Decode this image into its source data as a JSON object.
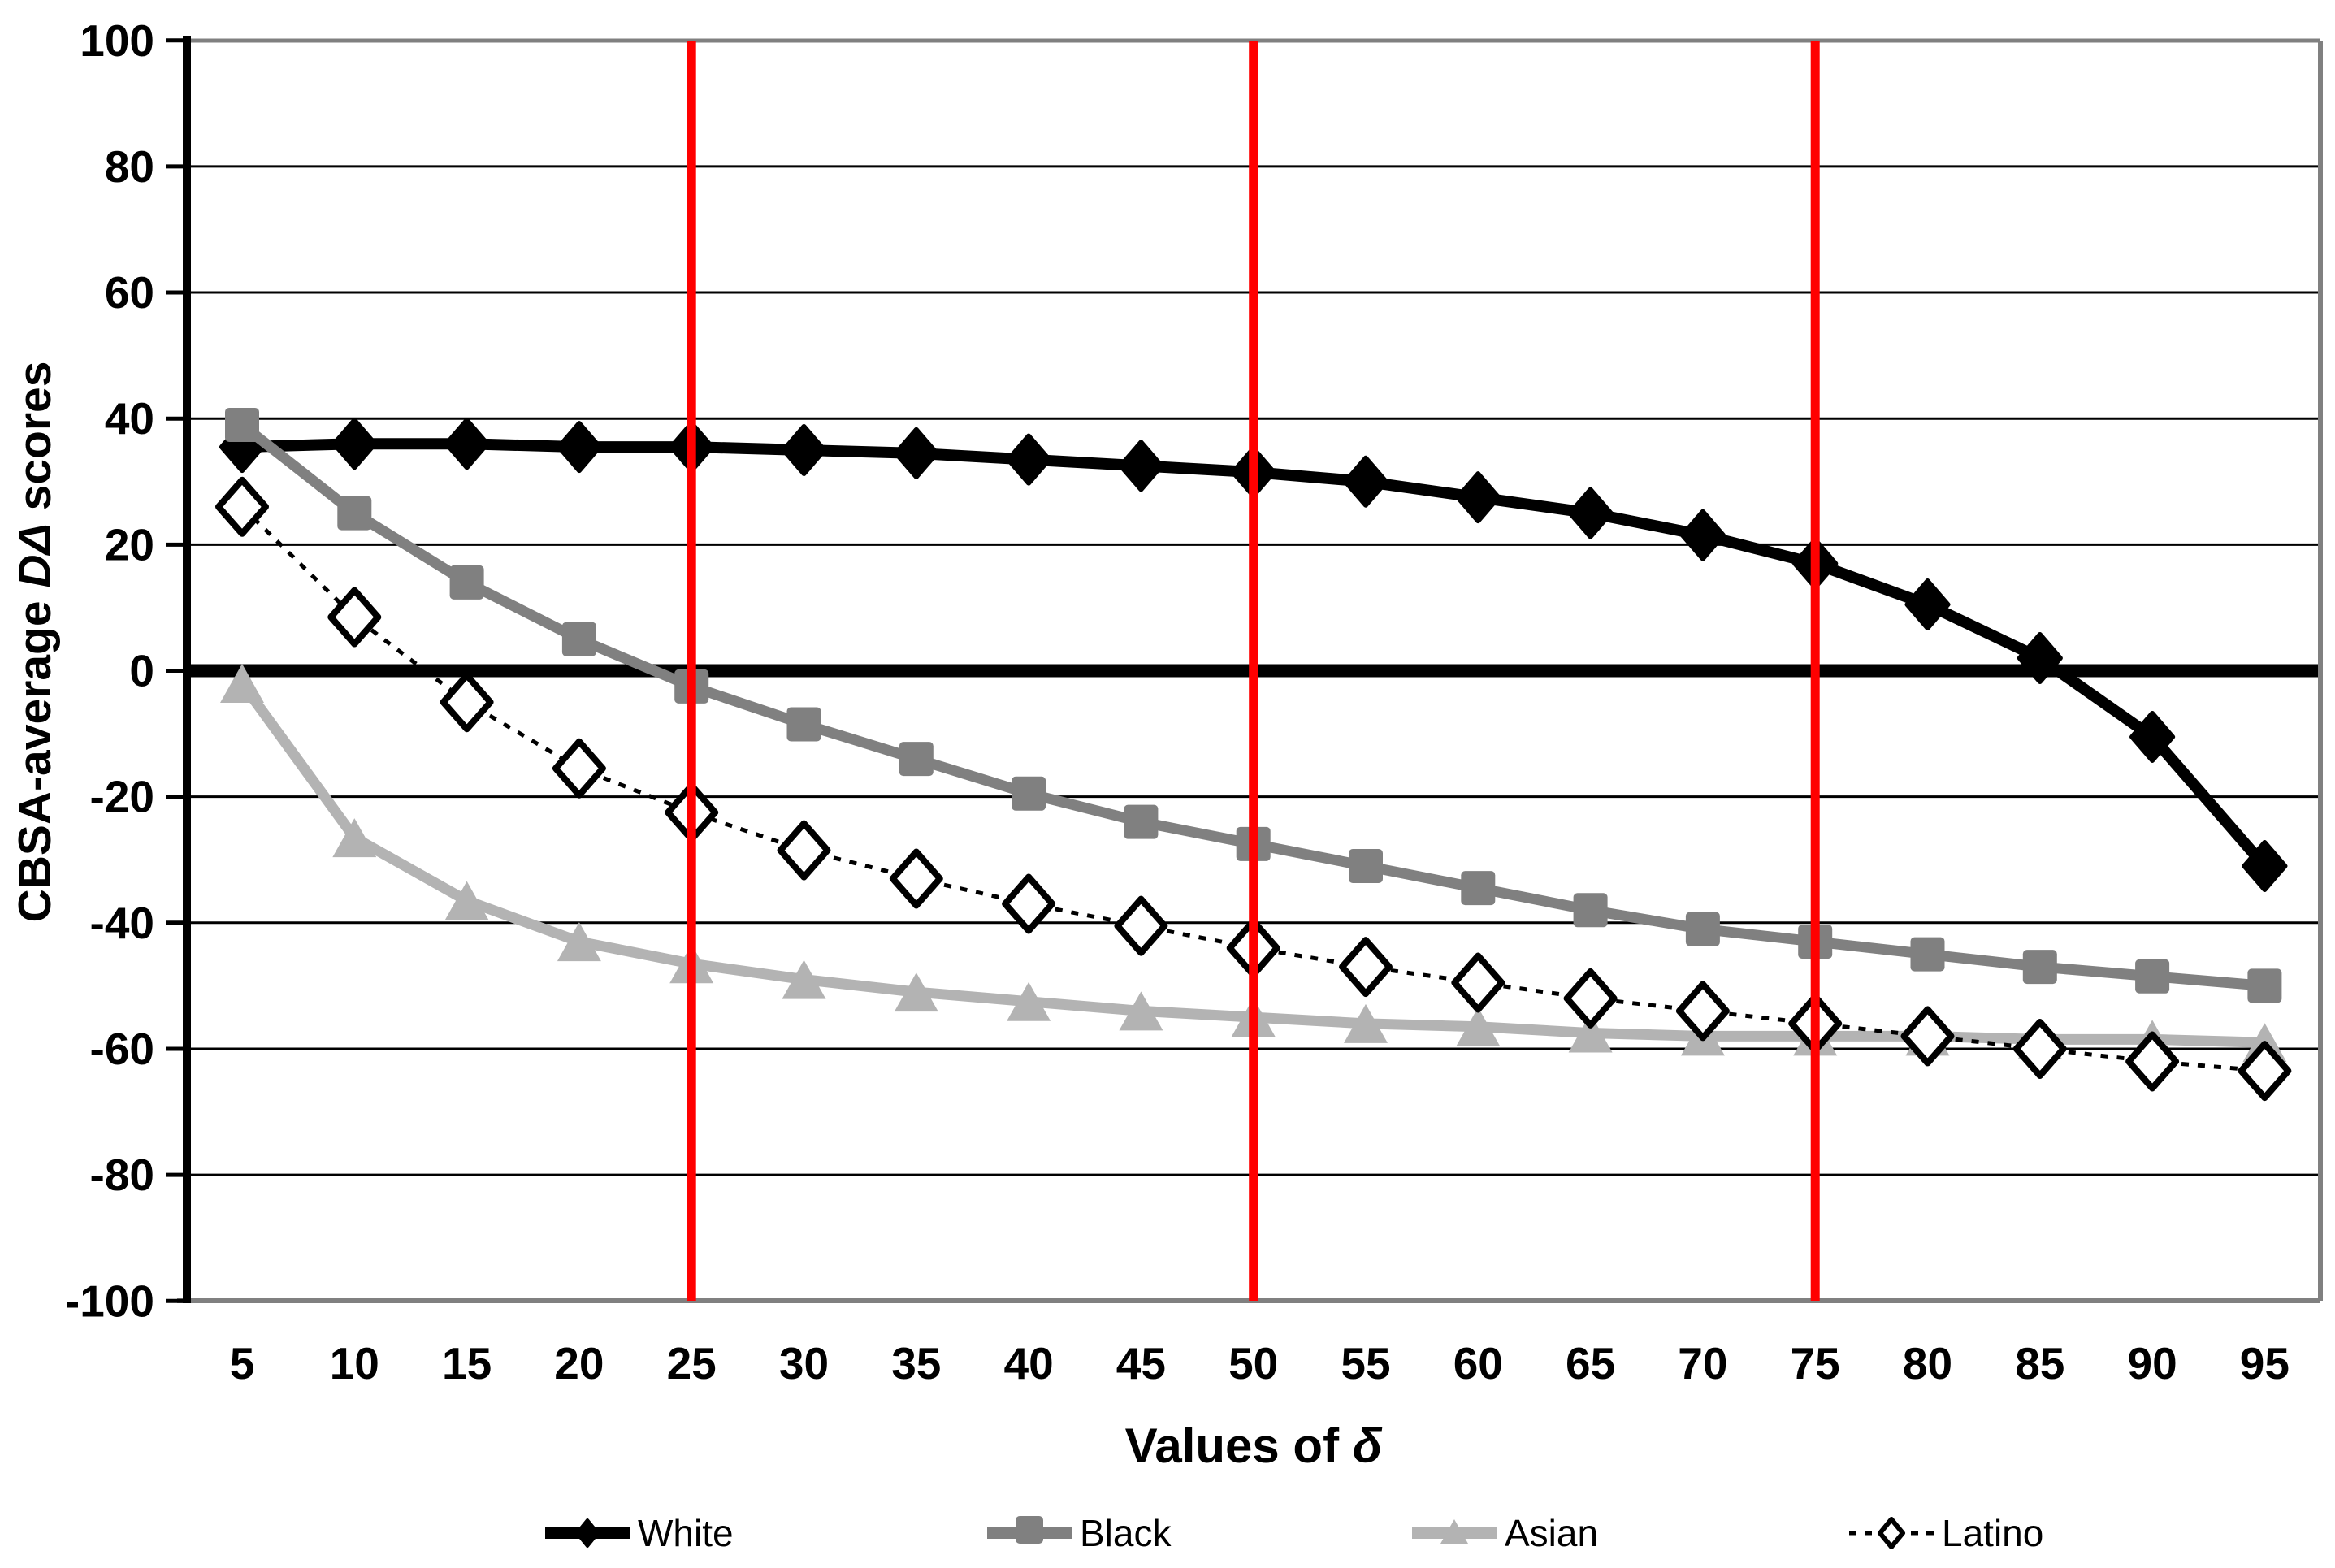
{
  "chart_data": {
    "type": "line",
    "title": "",
    "xlabel_text": "Values of ",
    "xlabel_symbol": "δ",
    "ylabel_pre": "CBSA-average ",
    "ylabel_italic": "DΔ",
    "ylabel_post": " scores",
    "x": [
      5,
      10,
      15,
      20,
      25,
      30,
      35,
      40,
      45,
      50,
      55,
      60,
      65,
      70,
      75,
      80,
      85,
      90,
      95
    ],
    "x_tick_labels": [
      "5",
      "10",
      "15",
      "20",
      "25",
      "30",
      "35",
      "40",
      "45",
      "50",
      "55",
      "60",
      "65",
      "70",
      "75",
      "80",
      "85",
      "90",
      "95"
    ],
    "y_ticks": [
      100,
      80,
      60,
      40,
      20,
      0,
      -20,
      -40,
      -60,
      -80,
      -100
    ],
    "y_tick_labels": [
      "100",
      "80",
      "60",
      "40",
      "20",
      "0",
      "-20",
      "-40",
      "-60",
      "-80",
      "-100"
    ],
    "ylim": [
      -100,
      100
    ],
    "grid": "horizontal-only",
    "zero_line": true,
    "vlines": {
      "x": [
        25,
        50,
        75
      ],
      "color": "#ff0000"
    },
    "border_color": "#808080",
    "axis_color": "#000000",
    "legend_position": "bottom",
    "series": [
      {
        "name": "White",
        "color": "#000000",
        "marker": "diamond-filled",
        "line": "solid",
        "values": [
          35.5,
          36,
          36,
          35.5,
          35.5,
          35,
          34.5,
          33.5,
          32.5,
          31.5,
          30,
          27.5,
          25,
          21.5,
          17,
          10.5,
          2,
          -10.5,
          -31
        ]
      },
      {
        "name": "Black",
        "color": "#808080",
        "marker": "square-filled",
        "line": "solid",
        "values": [
          39,
          25,
          14,
          5,
          -2.5,
          -8.5,
          -14,
          -19.5,
          -24,
          -27.5,
          -31,
          -34.5,
          -38,
          -41,
          -43,
          -45,
          -47,
          -48.5,
          -50
        ]
      },
      {
        "name": "Asian",
        "color": "#b3b3b3",
        "marker": "triangle-filled",
        "line": "solid",
        "values": [
          -2,
          -26.5,
          -36.5,
          -43,
          -46.5,
          -49,
          -51,
          -52.5,
          -54,
          -55,
          -56,
          -56.5,
          -57.5,
          -58,
          -58,
          -58,
          -58.5,
          -58.5,
          -59
        ]
      },
      {
        "name": "Latino",
        "color": "#000000",
        "marker": "diamond-open",
        "line": "dotted",
        "values": [
          26,
          8.5,
          -5,
          -15.5,
          -22.5,
          -28.5,
          -33,
          -37,
          -40.5,
          -44,
          -47,
          -49.5,
          -52,
          -54,
          -56,
          -58,
          -60,
          -62,
          -63.5
        ]
      }
    ]
  }
}
